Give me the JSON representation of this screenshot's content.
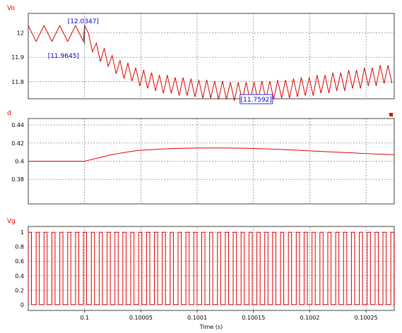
{
  "chart_data": [
    {
      "type": "line",
      "title": "Vo",
      "xlim": [
        0.09995,
        0.100275
      ],
      "ylim": [
        11.73,
        12.08
      ],
      "yticks": [
        11.8,
        11.9,
        12
      ],
      "grid": true,
      "color": "#e00000",
      "series": [
        {
          "x": [
            0.09995,
            0.099957,
            0.099964,
            0.099971,
            0.099978,
            0.099985,
            0.099992,
            0.099999,
            0.1,
            0.100007,
            0.100014,
            0.100021,
            0.100028,
            0.100035,
            0.100042,
            0.100049,
            0.100056,
            0.100063,
            0.10007,
            0.100077,
            0.100084,
            0.100091,
            0.100098,
            0.100105,
            0.100112,
            0.100119,
            0.100126,
            0.100133,
            0.10014,
            0.100147,
            0.100154,
            0.100161,
            0.100168,
            0.100175,
            0.100182,
            0.100189,
            0.100196,
            0.100203,
            0.10021,
            0.100217,
            0.100224,
            0.100231,
            0.100238,
            0.100245,
            0.100252,
            0.100259,
            0.100266,
            0.100273
          ],
          "values": [
            12.03,
            11.965,
            12.03,
            11.965,
            12.03,
            11.965,
            12.03,
            11.965,
            12.03,
            11.96,
            11.92,
            11.9,
            11.87,
            11.85,
            11.84,
            11.82,
            11.81,
            11.8,
            11.79,
            11.79,
            11.78,
            11.78,
            11.775,
            11.77,
            11.77,
            11.765,
            11.765,
            11.76,
            11.76,
            11.76,
            11.76,
            11.765,
            11.765,
            11.77,
            11.77,
            11.775,
            11.78,
            11.78,
            11.79,
            11.79,
            11.8,
            11.8,
            11.81,
            11.81,
            11.82,
            11.82,
            11.83,
            11.83
          ],
          "ripple": [
            0,
            0,
            0,
            0,
            0,
            0,
            0,
            0,
            0,
            0.075,
            0.075,
            0.075,
            0.075,
            0.075,
            0.075,
            0.075,
            0.075,
            0.075,
            0.075,
            0.075,
            0.075,
            0.075,
            0.075,
            0.075,
            0.075,
            0.075,
            0.075,
            0.075,
            0.075,
            0.075,
            0.075,
            0.075,
            0.075,
            0.075,
            0.075,
            0.075,
            0.075,
            0.075,
            0.075,
            0.075,
            0.075,
            0.075,
            0.075,
            0.075,
            0.075,
            0.075,
            0.075,
            0.075
          ]
        }
      ],
      "annotations": [
        {
          "text": "[12.0347]",
          "x": 0.1,
          "y": 12.0347
        },
        {
          "text": "[11.9645]",
          "x": 0.1,
          "y": 11.9645
        },
        {
          "text": "[11.7592]",
          "x": 0.10015,
          "y": 11.7592
        }
      ]
    },
    {
      "type": "line",
      "title": "d",
      "xlim": [
        0.09995,
        0.100275
      ],
      "ylim": [
        0.353,
        0.447
      ],
      "yticks": [
        0.38,
        0.4,
        0.42,
        0.44
      ],
      "grid": true,
      "color": "#e00000",
      "series": [
        {
          "x": [
            0.09995,
            0.1,
            0.100005,
            0.10001,
            0.100015,
            0.10002,
            0.100025,
            0.10003,
            0.100035,
            0.10004,
            0.100045,
            0.10005,
            0.10006,
            0.10007,
            0.10008,
            0.10009,
            0.1001,
            0.10011,
            0.10012,
            0.10013,
            0.10014,
            0.10015,
            0.10016,
            0.10017,
            0.10018,
            0.10019,
            0.1002,
            0.10021,
            0.10022,
            0.10023,
            0.10024,
            0.10025,
            0.10026,
            0.10027,
            0.100275
          ],
          "values": [
            0.4,
            0.4,
            0.4015,
            0.403,
            0.4045,
            0.406,
            0.4075,
            0.4085,
            0.4095,
            0.4105,
            0.4115,
            0.412,
            0.4128,
            0.4135,
            0.414,
            0.4143,
            0.4145,
            0.4146,
            0.4146,
            0.4145,
            0.4143,
            0.414,
            0.4136,
            0.4131,
            0.4126,
            0.412,
            0.4114,
            0.4108,
            0.4102,
            0.4096,
            0.409,
            0.4084,
            0.4079,
            0.4074,
            0.4072
          ]
        }
      ]
    },
    {
      "type": "line",
      "title": "Vg",
      "xlabel": "Time (s)",
      "xlim": [
        0.09995,
        0.100275
      ],
      "ylim": [
        -0.08,
        1.08
      ],
      "yticks": [
        0,
        0.2,
        0.4,
        0.6,
        0.8,
        1
      ],
      "xticks": [
        0.1,
        0.10005,
        0.1001,
        0.10015,
        0.1002,
        0.10025
      ],
      "xticklabels": [
        "0.1",
        "0.10005",
        "0.1001",
        "0.10015",
        "0.1002",
        "0.10025"
      ],
      "grid": true,
      "color": "#e00000",
      "series": [
        {
          "period": 7e-06,
          "duty": [
            0.4,
            0.4,
            0.4,
            0.4,
            0.4,
            0.4,
            0.4,
            0.4,
            0.401,
            0.404,
            0.406,
            0.409,
            0.411,
            0.412,
            0.413,
            0.413,
            0.414,
            0.414,
            0.414,
            0.414,
            0.414,
            0.414,
            0.414,
            0.414,
            0.414,
            0.414,
            0.413,
            0.413,
            0.413,
            0.412,
            0.412,
            0.411,
            0.411,
            0.41,
            0.41,
            0.409,
            0.409,
            0.408,
            0.408,
            0.407,
            0.407,
            0.407,
            0.407,
            0.407,
            0.407,
            0.407,
            0.407
          ]
        }
      ]
    }
  ]
}
